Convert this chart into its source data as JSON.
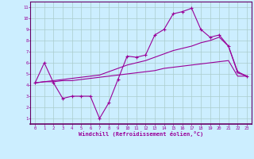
{
  "xlabel": "Windchill (Refroidissement éolien,°C)",
  "line_color": "#990099",
  "axis_color": "#660066",
  "background_color": "#cceeff",
  "grid_color": "#aacccc",
  "xlim": [
    -0.5,
    23.5
  ],
  "ylim": [
    0.5,
    11.5
  ],
  "xticks": [
    0,
    1,
    2,
    3,
    4,
    5,
    6,
    7,
    8,
    9,
    10,
    11,
    12,
    13,
    14,
    15,
    16,
    17,
    18,
    19,
    20,
    21,
    22,
    23
  ],
  "yticks": [
    1,
    2,
    3,
    4,
    5,
    6,
    7,
    8,
    9,
    10,
    11
  ],
  "line1_x": [
    0,
    1,
    2,
    3,
    4,
    5,
    6,
    7,
    8,
    9,
    10,
    11,
    12,
    13,
    14,
    15,
    16,
    17,
    18,
    19,
    20,
    21,
    22,
    23
  ],
  "line1_y": [
    4.2,
    6.0,
    4.2,
    2.8,
    3.0,
    3.0,
    3.0,
    1.0,
    2.4,
    4.5,
    6.6,
    6.5,
    6.7,
    8.5,
    9.0,
    10.4,
    10.6,
    10.9,
    9.0,
    8.3,
    8.5,
    7.5,
    5.2,
    4.8
  ],
  "line2_x": [
    0,
    1,
    2,
    3,
    4,
    5,
    6,
    7,
    8,
    9,
    10,
    11,
    12,
    13,
    14,
    15,
    16,
    17,
    18,
    19,
    20,
    21,
    22,
    23
  ],
  "line2_y": [
    4.2,
    4.3,
    4.3,
    4.4,
    4.4,
    4.5,
    4.6,
    4.7,
    4.8,
    4.9,
    5.0,
    5.1,
    5.2,
    5.3,
    5.5,
    5.6,
    5.7,
    5.8,
    5.9,
    6.0,
    6.1,
    6.2,
    4.8,
    4.8
  ],
  "line3_x": [
    0,
    1,
    2,
    3,
    4,
    5,
    6,
    7,
    8,
    9,
    10,
    11,
    12,
    13,
    14,
    15,
    16,
    17,
    18,
    19,
    20,
    21,
    22,
    23
  ],
  "line3_y": [
    4.2,
    4.3,
    4.4,
    4.5,
    4.6,
    4.7,
    4.8,
    4.9,
    5.2,
    5.5,
    5.8,
    6.0,
    6.2,
    6.5,
    6.8,
    7.1,
    7.3,
    7.5,
    7.8,
    8.0,
    8.3,
    7.5,
    5.1,
    4.8
  ]
}
